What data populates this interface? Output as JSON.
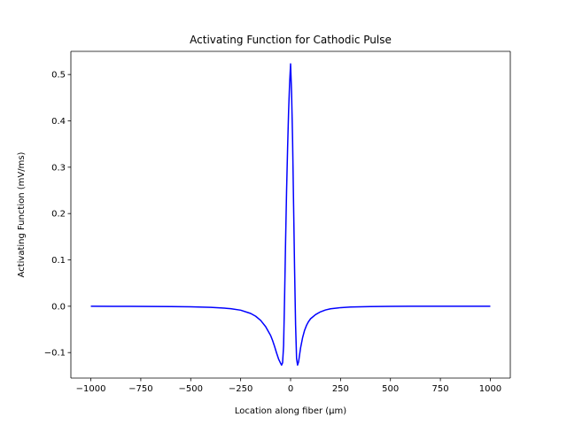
{
  "chart_data": {
    "type": "line",
    "title": "Activating Function for Cathodic Pulse",
    "xlabel": "Location along fiber (μm)",
    "ylabel": "Activating Function (mV/ms)",
    "xlim": [
      -1100,
      1100
    ],
    "ylim": [
      -0.155,
      0.55
    ],
    "xticks": [
      -1000,
      -750,
      -500,
      -250,
      0,
      250,
      500,
      750,
      1000
    ],
    "xtick_labels": [
      "−1000",
      "−750",
      "−500",
      "−250",
      "0",
      "250",
      "500",
      "750",
      "1000"
    ],
    "yticks": [
      -0.1,
      0.0,
      0.1,
      0.2,
      0.3,
      0.4,
      0.5
    ],
    "ytick_labels": [
      "−0.1",
      "0.0",
      "0.1",
      "0.2",
      "0.3",
      "0.4",
      "0.5"
    ],
    "grid": false,
    "series": [
      {
        "color": "#0000ff",
        "x": [
          -1000,
          -800,
          -600,
          -500,
          -400,
          -350,
          -300,
          -250,
          -200,
          -175,
          -150,
          -125,
          -100,
          -90,
          -80,
          -70,
          -60,
          -50,
          -45,
          -40,
          -35,
          -30,
          -25,
          -20,
          -15,
          -10,
          -5,
          0,
          5,
          10,
          15,
          20,
          25,
          30,
          35,
          40,
          45,
          50,
          60,
          70,
          80,
          90,
          100,
          125,
          150,
          175,
          200,
          250,
          300,
          350,
          400,
          500,
          600,
          800,
          1000
        ],
        "y": [
          0.0,
          -0.0003,
          -0.0008,
          -0.0013,
          -0.0024,
          -0.0035,
          -0.0052,
          -0.0085,
          -0.0155,
          -0.0215,
          -0.0305,
          -0.044,
          -0.063,
          -0.074,
          -0.087,
          -0.101,
          -0.114,
          -0.123,
          -0.127,
          -0.122,
          -0.085,
          0.02,
          0.14,
          0.25,
          0.34,
          0.42,
          0.48,
          0.523,
          0.46,
          0.36,
          0.22,
          0.08,
          -0.04,
          -0.113,
          -0.127,
          -0.12,
          -0.105,
          -0.09,
          -0.068,
          -0.052,
          -0.041,
          -0.033,
          -0.027,
          -0.018,
          -0.012,
          -0.008,
          -0.0055,
          -0.003,
          -0.0018,
          -0.0011,
          -0.0007,
          -0.0003,
          -0.0001,
          0.0,
          0.0
        ]
      }
    ]
  }
}
